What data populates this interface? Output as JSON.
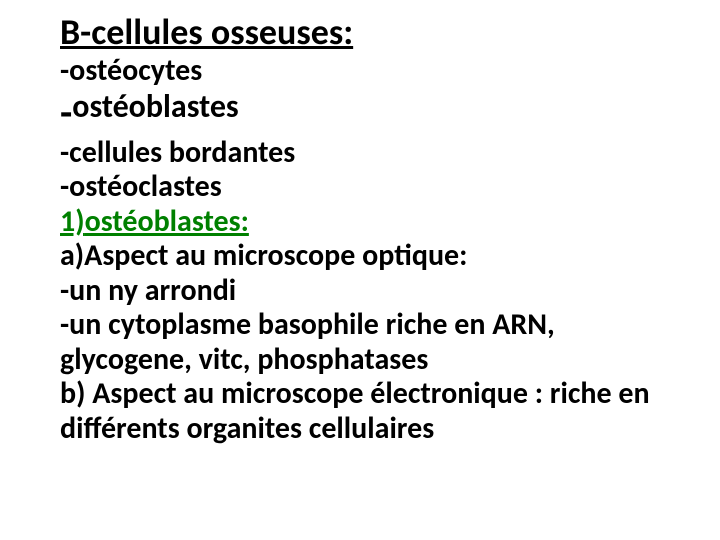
{
  "title": {
    "text": "B-cellules osseuses:",
    "fontsize": 36,
    "color": "#000000"
  },
  "list": {
    "items": [
      {
        "text": "-ostéocytes",
        "fontsize": 30,
        "weight": "bold"
      },
      {
        "text": "-ostéoblastes",
        "fontsize": 32,
        "weight": "bold",
        "dash_size": 40
      },
      {
        "text": "-cellules bordantes",
        "fontsize": 30,
        "weight": "bold"
      },
      {
        "text": "-ostéoclastes",
        "fontsize": 30,
        "weight": "bold"
      }
    ],
    "color": "#000000"
  },
  "section": {
    "number": "1)",
    "label": "ostéoblastes:",
    "fontsize": 30,
    "color": "#008000"
  },
  "body": {
    "lines": [
      "a)Aspect au microscope optique:",
      "-un ny arrondi",
      "-un cytoplasme basophile riche en  ARN, glycogene, vitc, phosphatases",
      "b) Aspect au microscope électronique : riche en différents organites cellulaires"
    ],
    "fontsize": 30,
    "color": "#000000"
  },
  "line_height": 1.15
}
